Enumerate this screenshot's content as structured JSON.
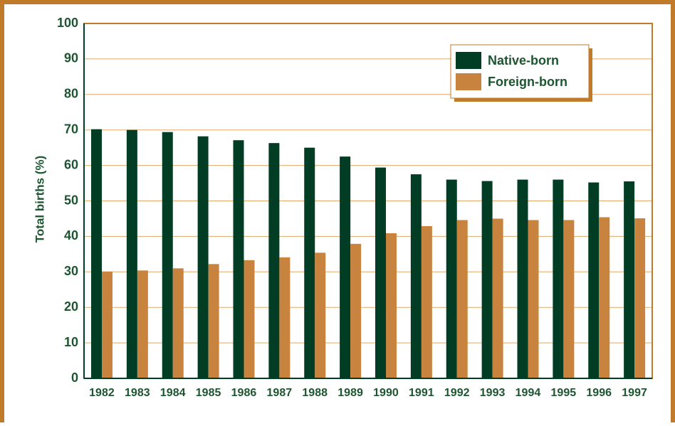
{
  "chart_data": {
    "type": "bar",
    "y_label": "Total births (%)",
    "categories": [
      "1982",
      "1983",
      "1984",
      "1985",
      "1986",
      "1987",
      "1988",
      "1989",
      "1990",
      "1991",
      "1992",
      "1993",
      "1994",
      "1995",
      "1996",
      "1997"
    ],
    "series": [
      {
        "name": "Native-born",
        "color": "#003d24",
        "values": [
          70.2,
          70.0,
          69.4,
          68.2,
          67.1,
          66.3,
          65.0,
          62.5,
          59.4,
          57.5,
          56.0,
          55.6,
          56.0,
          56.0,
          55.2,
          55.5
        ]
      },
      {
        "name": "Foreign-born",
        "color": "#c8843e",
        "values": [
          30.1,
          30.4,
          31.0,
          32.2,
          33.3,
          34.1,
          35.4,
          37.9,
          40.9,
          42.9,
          44.6,
          45.0,
          44.6,
          44.6,
          45.4,
          45.1
        ]
      }
    ],
    "ylim": [
      0,
      100
    ],
    "yticks": [
      0,
      10,
      20,
      30,
      40,
      50,
      60,
      70,
      80,
      90,
      100
    ],
    "grid": true,
    "legend": "upper right"
  }
}
